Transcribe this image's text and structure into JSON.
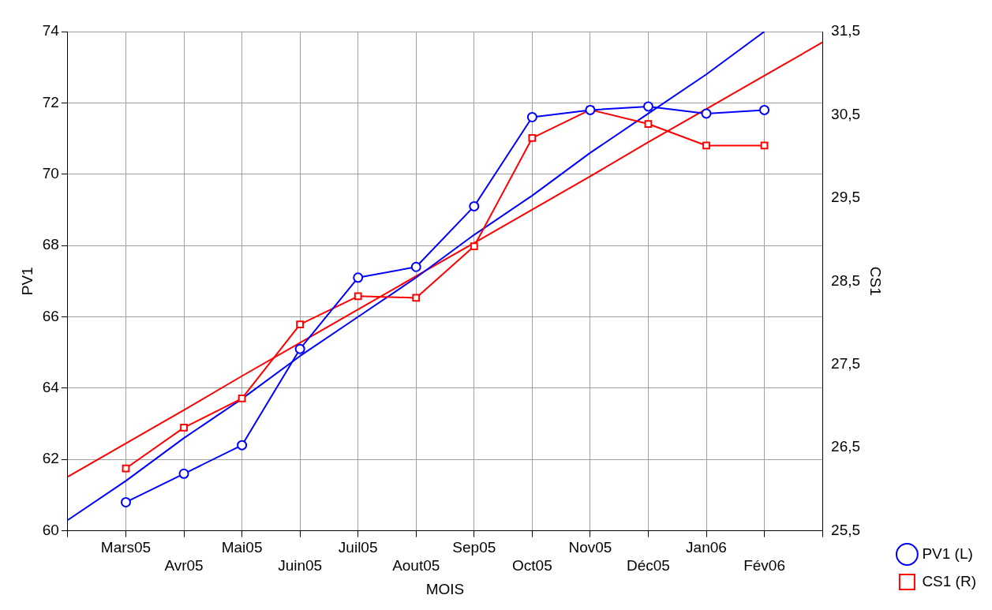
{
  "chart_data": {
    "type": "line",
    "xlabel": "MOIS",
    "ylabel": "PV1",
    "y2label": "CS1",
    "categories": [
      null,
      "Mars05",
      "Avr05",
      "Mai05",
      "Juin05",
      "Juil05",
      "Aout05",
      "Sep05",
      "Oct05",
      "Nov05",
      "Déc05",
      "Jan06",
      "Fév06",
      null
    ],
    "ylim": [
      60,
      74
    ],
    "yticks": [
      60,
      62,
      64,
      66,
      68,
      70,
      72,
      74
    ],
    "y2lim": [
      25.5,
      31.5
    ],
    "y2ticks": [
      {
        "value": 25.5,
        "label": "25,5"
      },
      {
        "value": 26.5,
        "label": "26,5"
      },
      {
        "value": 27.5,
        "label": "27,5"
      },
      {
        "value": 28.5,
        "label": "28,5"
      },
      {
        "value": 29.5,
        "label": "29,5"
      },
      {
        "value": 30.5,
        "label": "30,5"
      },
      {
        "value": 31.5,
        "label": "31,5"
      }
    ],
    "series": [
      {
        "name": "PV1 (L)",
        "color": "#0000ff",
        "marker": "circle",
        "values": [
          null,
          60.8,
          61.6,
          62.4,
          65.1,
          67.1,
          67.4,
          69.1,
          71.6,
          71.8,
          71.9,
          71.7,
          71.8,
          null
        ]
      },
      {
        "name": "CS1 (R)",
        "color": "#ff0000",
        "marker": "square",
        "axis": "y2",
        "values": [
          null,
          26.25,
          26.74,
          27.09,
          27.98,
          28.32,
          28.3,
          28.92,
          30.22,
          30.56,
          30.39,
          30.13,
          30.13,
          null
        ]
      },
      {
        "type": "line",
        "color": "#0000ff",
        "marker": "none",
        "values": [
          60.3,
          61.4,
          62.6,
          63.7,
          64.9,
          66.0,
          67.1,
          68.3,
          69.4,
          70.6,
          71.7,
          72.8,
          74.0,
          null
        ]
      },
      {
        "type": "line",
        "color": "#ff0000",
        "marker": "none",
        "axis": "y2",
        "values": [
          26.15,
          26.55,
          26.95,
          27.36,
          27.76,
          28.16,
          28.56,
          28.96,
          29.36,
          29.76,
          30.17,
          30.57,
          30.97,
          31.37
        ]
      }
    ],
    "grid": true,
    "legend": "bottom right",
    "line_style": "solid"
  }
}
